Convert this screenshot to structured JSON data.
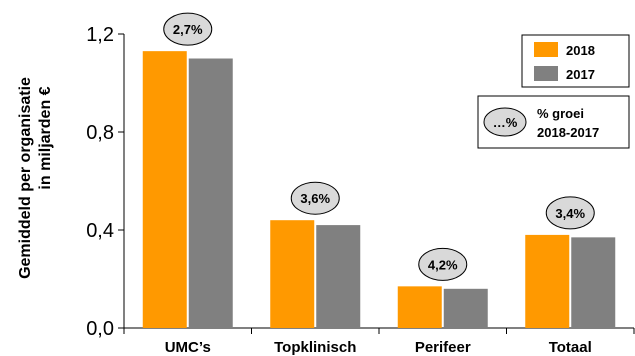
{
  "chart_data": {
    "type": "bar",
    "ylabel_line1": "Gemiddeld  per organisatie",
    "ylabel_line2": "in miljarden €",
    "ylim": [
      0,
      1.2
    ],
    "yticks": [
      0,
      0.4,
      0.8,
      1.2
    ],
    "ytick_labels": [
      "0,0",
      "0,4",
      "0,8",
      "1,2"
    ],
    "categories": [
      "UMC’s",
      "Topklinisch",
      "Perifeer",
      "Totaal"
    ],
    "series": [
      {
        "name": "2018",
        "color": "#FF9900",
        "values": [
          1.13,
          0.44,
          0.17,
          0.38
        ]
      },
      {
        "name": "2017",
        "color": "#808080",
        "values": [
          1.1,
          0.42,
          0.16,
          0.37
        ]
      }
    ],
    "growth_labels": [
      "2,7%",
      "3,6%",
      "4,2%",
      "3,4%"
    ],
    "legend": {
      "placement": "top-right",
      "growth_key_symbol": "…%",
      "growth_key_line1": "% groei",
      "growth_key_line2": "2018-2017"
    },
    "grid": false
  }
}
